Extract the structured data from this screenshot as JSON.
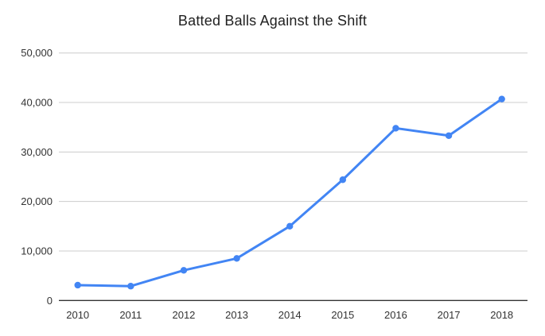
{
  "page": {
    "background_color": "#ffffff"
  },
  "chart_data": {
    "type": "line",
    "title": "Batted Balls Against the Shift",
    "categories": [
      "2010",
      "2011",
      "2012",
      "2013",
      "2014",
      "2015",
      "2016",
      "2017",
      "2018"
    ],
    "values": [
      3100,
      2900,
      6100,
      8500,
      15000,
      24400,
      34800,
      33300,
      40700
    ],
    "xlabel": "",
    "ylabel": "",
    "ylim": [
      0,
      50000
    ],
    "y_ticks": [
      {
        "value": 0,
        "label": "0"
      },
      {
        "value": 10000,
        "label": "10,000"
      },
      {
        "value": 20000,
        "label": "20,000"
      },
      {
        "value": 30000,
        "label": "30,000"
      },
      {
        "value": 40000,
        "label": "40,000"
      },
      {
        "value": 50000,
        "label": "50,000"
      }
    ],
    "grid": "horizontal",
    "legend_position": "none",
    "line_color": "#4285f4",
    "point_color": "#4285f4",
    "gridline_color": "#cccccc",
    "axis_line_color": "#333333",
    "label_color": "#333333",
    "title_color": "#212121",
    "background_color": "#ffffff"
  }
}
